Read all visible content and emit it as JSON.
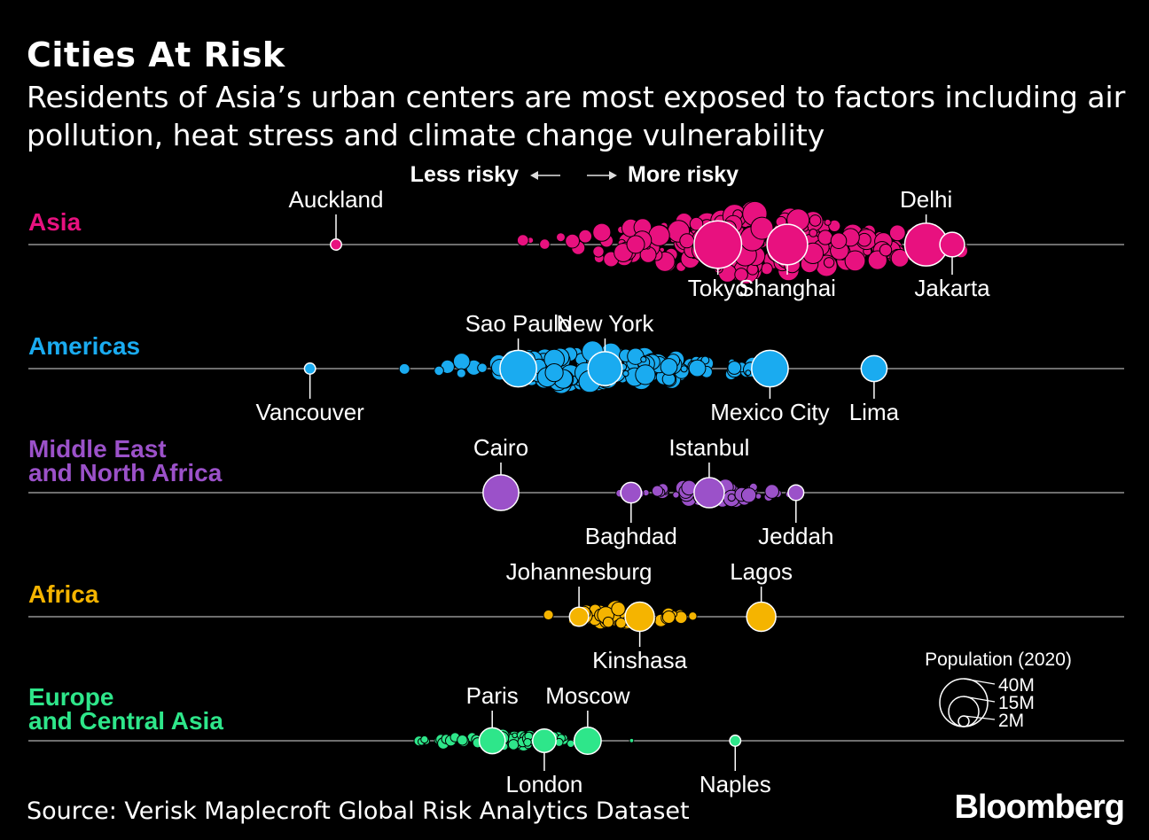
{
  "title": "Cities At Risk",
  "subtitle": "Residents of Asia’s urban centers are most exposed to factors including air pollution, heat stress and climate change vulnerability",
  "source": "Source: Verisk Maplecroft Global Risk Analytics Dataset",
  "brand": "Bloomberg",
  "colors": {
    "background": "#000000",
    "axis": "#6e6e6e",
    "label": "#ffffff"
  },
  "chart_data": {
    "type": "scatter",
    "subtype": "beeswarm",
    "direction_labels": {
      "less": "Less risky",
      "more": "More risky"
    },
    "size_legend": {
      "title": "Population (2020)",
      "values": [
        "40M",
        "15M",
        "2M"
      ]
    },
    "groups": [
      {
        "name": "Asia",
        "color": "#e8117f",
        "labeled_cities": [
          {
            "name": "Auckland",
            "x": 20,
            "size": 2,
            "label_side": "above"
          },
          {
            "name": "Tokyo",
            "x": 64,
            "size": 37,
            "label_side": "below"
          },
          {
            "name": "Shanghai",
            "x": 72,
            "size": 27,
            "label_side": "below"
          },
          {
            "name": "Delhi",
            "x": 88,
            "size": 30,
            "label_side": "above"
          },
          {
            "name": "Jakarta",
            "x": 91,
            "size": 10,
            "label_side": "below"
          }
        ]
      },
      {
        "name": "Americas",
        "color": "#1aabf0",
        "labeled_cities": [
          {
            "name": "Vancouver",
            "x": 17,
            "size": 2,
            "label_side": "below"
          },
          {
            "name": "Sao Paulo",
            "x": 41,
            "size": 22,
            "label_side": "above"
          },
          {
            "name": "New York",
            "x": 51,
            "size": 19,
            "label_side": "above"
          },
          {
            "name": "Mexico City",
            "x": 70,
            "size": 22,
            "label_side": "below"
          },
          {
            "name": "Lima",
            "x": 82,
            "size": 11,
            "label_side": "below"
          }
        ]
      },
      {
        "name": "Middle East and North Africa",
        "name_lines": [
          "Middle East",
          "and North Africa"
        ],
        "color": "#9b51c9",
        "labeled_cities": [
          {
            "name": "Cairo",
            "x": 39,
            "size": 21,
            "label_side": "above"
          },
          {
            "name": "Baghdad",
            "x": 54,
            "size": 7,
            "label_side": "below"
          },
          {
            "name": "Istanbul",
            "x": 63,
            "size": 15,
            "label_side": "above"
          },
          {
            "name": "Jeddah",
            "x": 73,
            "size": 4,
            "label_side": "below"
          }
        ]
      },
      {
        "name": "Africa",
        "color": "#f5b400",
        "labeled_cities": [
          {
            "name": "Johannesburg",
            "x": 48,
            "size": 6,
            "label_side": "above"
          },
          {
            "name": "Kinshasa",
            "x": 55,
            "size": 14,
            "label_side": "below"
          },
          {
            "name": "Lagos",
            "x": 69,
            "size": 14,
            "label_side": "above"
          }
        ]
      },
      {
        "name": "Europe and Central Asia",
        "name_lines": [
          "Europe",
          "and Central Asia"
        ],
        "color": "#2ee68a",
        "labeled_cities": [
          {
            "name": "Paris",
            "x": 38,
            "size": 11,
            "label_side": "above"
          },
          {
            "name": "London",
            "x": 44,
            "size": 9,
            "label_side": "below"
          },
          {
            "name": "Moscow",
            "x": 49,
            "size": 12,
            "label_side": "above"
          },
          {
            "name": "Naples",
            "x": 66,
            "size": 2,
            "label_side": "below"
          }
        ]
      }
    ]
  }
}
